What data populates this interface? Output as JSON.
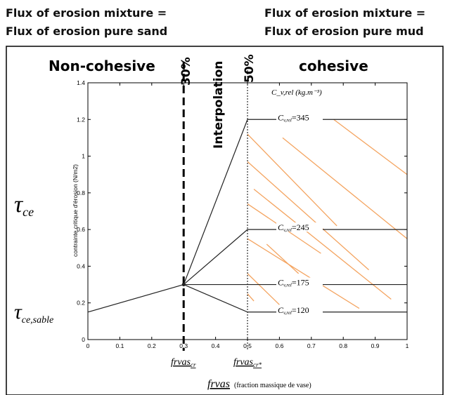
{
  "headers": {
    "left_line1": "Flux of erosion mixture =",
    "left_line2": "Flux of erosion pure sand",
    "right_line1": "Flux of erosion mixture =",
    "right_line2": "Flux of erosion pure mud"
  },
  "regions": {
    "left": "Non-cohesive",
    "middle": "Interpolation",
    "right": "cohesive"
  },
  "thresholds": {
    "low_label": "30%",
    "high_label": "50%",
    "low_symbol": "frvas",
    "low_subscript": "cr",
    "high_symbol": "frvas",
    "high_subscript": "cr*"
  },
  "outer_labels": {
    "tau_ce_main": "τ",
    "tau_ce_sub": "ce",
    "tau_sable_main": "τ",
    "tau_sable_sub": "ce,sable"
  },
  "chart_data": {
    "type": "line",
    "title": "",
    "xlabel": "frvas",
    "xlabel_note": "(fraction massique de vase)",
    "ylabel": "contrainte critique d'érosion (N/m2)",
    "xlim": [
      0,
      1
    ],
    "ylim": [
      0,
      1.4
    ],
    "xticks": [
      0,
      0.1,
      0.2,
      0.3,
      0.4,
      0.5,
      0.6,
      0.7,
      0.8,
      0.9,
      1
    ],
    "yticks": [
      0,
      0.2,
      0.4,
      0.6,
      0.8,
      1,
      1.2,
      1.4
    ],
    "xtick_labels": [
      "0",
      "0.1",
      "0.2",
      "0.3",
      "0.4",
      "0.5",
      "0.6",
      "0.7",
      "0.8",
      "0.9",
      "1"
    ],
    "ytick_labels": [
      "0",
      "0.2",
      "0.4",
      "0.6",
      "0.8",
      "1",
      "1.2",
      "1.4"
    ],
    "vlines": [
      0.3,
      0.5
    ],
    "hatch_color": "#f4a460",
    "legend_header": "C_v,rel (kg.m⁻³)",
    "sand_line": {
      "x": [
        0,
        0.3
      ],
      "y": [
        0.15,
        0.3
      ]
    },
    "series": [
      {
        "name": "C_v,rel=345",
        "label_main": "C",
        "label_sub": "v,rel",
        "label_value": "=345",
        "x": [
          0.3,
          0.5,
          1.0
        ],
        "y": [
          0.3,
          1.2,
          1.2
        ]
      },
      {
        "name": "C_v,rel=245",
        "label_main": "C",
        "label_sub": "v,rel",
        "label_value": "=245",
        "x": [
          0.3,
          0.5,
          1.0
        ],
        "y": [
          0.3,
          0.6,
          0.6
        ]
      },
      {
        "name": "C_v,rel=175",
        "label_main": "C",
        "label_sub": "v,rel",
        "label_value": "=175",
        "x": [
          0.3,
          0.5,
          1.0
        ],
        "y": [
          0.3,
          0.3,
          0.3
        ]
      },
      {
        "name": "C_v,rel=120",
        "label_main": "C",
        "label_sub": "v,rel",
        "label_value": "=120",
        "x": [
          0.3,
          0.5,
          1.0
        ],
        "y": [
          0.3,
          0.15,
          0.15
        ]
      }
    ]
  }
}
